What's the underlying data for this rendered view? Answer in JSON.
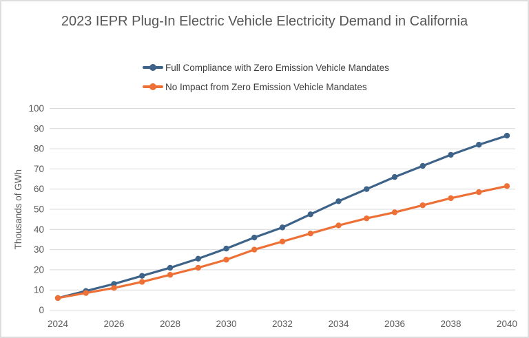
{
  "chart": {
    "title": "2023 IEPR Plug-In Electric Vehicle Electricity Demand in California",
    "colors": {
      "title_text": "#565656",
      "axis_text": "#595959",
      "legend_text": "#3d3d3d",
      "gridline": "#d9d9d9",
      "background": "#ffffff",
      "frame_border": "#dddddd"
    }
  },
  "chart_data": {
    "type": "line",
    "title": "2023 IEPR Plug-In Electric Vehicle Electricity Demand in California",
    "xlabel": "",
    "ylabel": "Thousands of GWh",
    "x": [
      2024,
      2025,
      2026,
      2027,
      2028,
      2029,
      2030,
      2031,
      2032,
      2033,
      2034,
      2035,
      2036,
      2037,
      2038,
      2039,
      2040
    ],
    "x_ticks": [
      2024,
      2026,
      2028,
      2030,
      2032,
      2034,
      2036,
      2038,
      2040
    ],
    "ylim": [
      0,
      100
    ],
    "y_ticks": [
      0,
      10,
      20,
      30,
      40,
      50,
      60,
      70,
      80,
      90,
      100
    ],
    "grid": "horizontal-only",
    "legend_position": "top-center",
    "series": [
      {
        "name": "Full Compliance with Zero Emission Vehicle Mandates",
        "color": "#3e6389",
        "marker": "circle",
        "values": [
          6,
          9.5,
          13,
          17,
          21,
          25.5,
          30.5,
          36,
          41,
          47.5,
          54,
          60,
          66,
          71.5,
          77,
          82,
          86.5
        ]
      },
      {
        "name": "No Impact from Zero Emission Vehicle Mandates",
        "color": "#ed7137",
        "marker": "circle",
        "values": [
          6,
          8.5,
          11,
          14,
          17.5,
          21,
          25,
          30,
          34,
          38,
          42,
          45.5,
          48.5,
          52,
          55.5,
          58.5,
          61.5
        ]
      }
    ]
  }
}
